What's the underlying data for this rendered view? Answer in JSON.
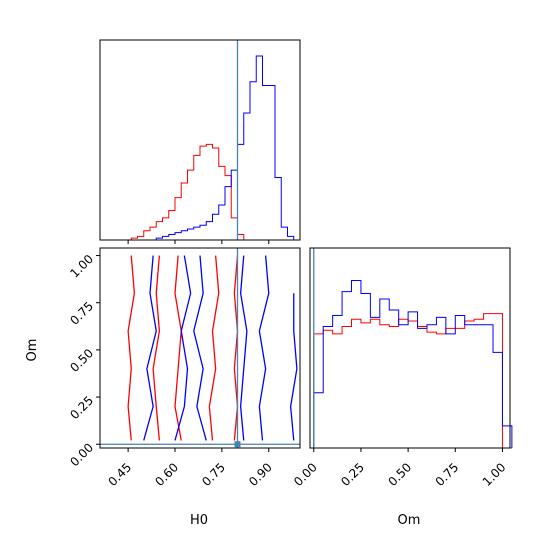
{
  "chart_data": {
    "type": "corner",
    "parameters": [
      "H0",
      "Om"
    ],
    "truth": {
      "H0": 0.8,
      "Om": 0.0
    },
    "colors": {
      "series_a": "#ff0000",
      "series_b": "#0000ff",
      "truth": "#4682b4"
    },
    "panels": [
      {
        "id": "hist_H0",
        "type": "histogram",
        "parameter": "H0",
        "xlim": [
          0.36,
          1.0
        ],
        "x_ticks": [
          0.45,
          0.6,
          0.75,
          0.9
        ],
        "y_ticks_shown": false,
        "ymax": 1.0,
        "bin_edges": [
          0.36,
          0.38,
          0.4,
          0.42,
          0.44,
          0.46,
          0.48,
          0.5,
          0.52,
          0.54,
          0.56,
          0.58,
          0.6,
          0.62,
          0.64,
          0.66,
          0.68,
          0.7,
          0.72,
          0.74,
          0.76,
          0.78,
          0.8,
          0.82,
          0.84,
          0.86,
          0.88,
          0.9,
          0.92,
          0.94,
          0.96,
          0.98,
          1.0
        ],
        "series": [
          {
            "color_key": "series_a",
            "values": [
              0.0,
              0.0,
              0.0,
              0.0,
              0.0,
              0.01,
              0.02,
              0.05,
              0.07,
              0.1,
              0.12,
              0.16,
              0.23,
              0.31,
              0.38,
              0.46,
              0.51,
              0.52,
              0.5,
              0.4,
              0.35,
              0.12,
              0.03,
              0.0,
              0.0,
              0.0,
              0.0,
              0.0,
              0.0,
              0.0,
              0.0,
              0.0
            ]
          },
          {
            "color_key": "series_b",
            "values": [
              0.0,
              0.0,
              0.0,
              0.0,
              0.0,
              0.0,
              0.0,
              0.0,
              0.0,
              0.01,
              0.02,
              0.03,
              0.04,
              0.05,
              0.06,
              0.07,
              0.08,
              0.1,
              0.14,
              0.19,
              0.29,
              0.38,
              0.52,
              0.69,
              0.86,
              1.0,
              0.84,
              0.84,
              0.34,
              0.07,
              0.02,
              0.0
            ]
          }
        ]
      },
      {
        "id": "hist_Om",
        "type": "histogram",
        "parameter": "Om",
        "xlim": [
          -0.02,
          1.04
        ],
        "x_ticks": [
          0.0,
          0.25,
          0.5,
          0.75,
          1.0
        ],
        "y_ticks_shown": false,
        "ymax": 1.0,
        "bin_edges": [
          0.0,
          0.05,
          0.1,
          0.15,
          0.2,
          0.25,
          0.3,
          0.35,
          0.4,
          0.45,
          0.5,
          0.55,
          0.6,
          0.65,
          0.7,
          0.75,
          0.8,
          0.85,
          0.9,
          0.95,
          1.0,
          1.05
        ],
        "series": [
          {
            "color_key": "series_a",
            "values": [
              0.62,
              0.64,
              0.62,
              0.66,
              0.7,
              0.68,
              0.7,
              0.67,
              0.66,
              0.7,
              0.69,
              0.66,
              0.63,
              0.62,
              0.65,
              0.65,
              0.69,
              0.7,
              0.73,
              0.73,
              0.0
            ]
          },
          {
            "color_key": "series_b",
            "values": [
              0.3,
              0.66,
              0.72,
              0.85,
              0.91,
              0.84,
              0.71,
              0.81,
              0.75,
              0.67,
              0.74,
              0.65,
              0.67,
              0.71,
              0.62,
              0.72,
              0.67,
              0.67,
              0.67,
              0.52,
              0.12
            ]
          }
        ]
      },
      {
        "id": "contour_H0_Om",
        "type": "contour",
        "x_parameter": "H0",
        "y_parameter": "Om",
        "xlim": [
          0.36,
          1.0
        ],
        "ylim": [
          -0.02,
          1.04
        ],
        "x_ticks": [
          0.45,
          0.6,
          0.75,
          0.9
        ],
        "y_ticks": [
          0.0,
          0.25,
          0.5,
          0.75,
          1.0
        ],
        "series": [
          {
            "color_key": "series_a",
            "levels": [
              [
                [
                  0.46,
                  0.02
                ],
                [
                  0.45,
                  0.2
                ],
                [
                  0.46,
                  0.4
                ],
                [
                  0.45,
                  0.6
                ],
                [
                  0.47,
                  0.8
                ],
                [
                  0.46,
                  1.0
                ]
              ],
              [
                [
                  0.55,
                  0.02
                ],
                [
                  0.54,
                  0.2
                ],
                [
                  0.53,
                  0.4
                ],
                [
                  0.55,
                  0.6
                ],
                [
                  0.54,
                  0.8
                ],
                [
                  0.55,
                  1.0
                ]
              ],
              [
                [
                  0.62,
                  0.02
                ],
                [
                  0.6,
                  0.2
                ],
                [
                  0.61,
                  0.4
                ],
                [
                  0.62,
                  0.6
                ],
                [
                  0.6,
                  0.8
                ],
                [
                  0.61,
                  1.0
                ]
              ],
              [
                [
                  0.72,
                  0.02
                ],
                [
                  0.71,
                  0.2
                ],
                [
                  0.73,
                  0.4
                ],
                [
                  0.72,
                  0.6
                ],
                [
                  0.74,
                  0.8
                ],
                [
                  0.73,
                  1.0
                ]
              ],
              [
                [
                  0.79,
                  0.02
                ],
                [
                  0.8,
                  0.2
                ],
                [
                  0.79,
                  0.4
                ],
                [
                  0.8,
                  0.6
                ],
                [
                  0.79,
                  0.8
                ],
                [
                  0.8,
                  1.0
                ]
              ]
            ]
          },
          {
            "color_key": "series_b",
            "levels": [
              [
                [
                  0.5,
                  0.02
                ],
                [
                  0.53,
                  0.2
                ],
                [
                  0.51,
                  0.4
                ],
                [
                  0.54,
                  0.6
                ],
                [
                  0.52,
                  0.8
                ],
                [
                  0.53,
                  1.0
                ]
              ],
              [
                [
                  0.6,
                  0.02
                ],
                [
                  0.63,
                  0.2
                ],
                [
                  0.64,
                  0.4
                ],
                [
                  0.62,
                  0.6
                ],
                [
                  0.65,
                  0.8
                ],
                [
                  0.63,
                  1.0
                ]
              ],
              [
                [
                  0.7,
                  0.02
                ],
                [
                  0.67,
                  0.2
                ],
                [
                  0.69,
                  0.4
                ],
                [
                  0.66,
                  0.6
                ],
                [
                  0.69,
                  0.8
                ],
                [
                  0.68,
                  1.0
                ]
              ],
              [
                [
                  0.82,
                  0.02
                ],
                [
                  0.81,
                  0.2
                ],
                [
                  0.82,
                  0.4
                ],
                [
                  0.83,
                  0.6
                ],
                [
                  0.81,
                  0.8
                ],
                [
                  0.82,
                  1.0
                ]
              ],
              [
                [
                  0.88,
                  0.02
                ],
                [
                  0.87,
                  0.2
                ],
                [
                  0.89,
                  0.4
                ],
                [
                  0.87,
                  0.6
                ],
                [
                  0.9,
                  0.8
                ],
                [
                  0.89,
                  1.0
                ]
              ],
              [
                [
                  0.98,
                  0.02
                ],
                [
                  0.97,
                  0.2
                ],
                [
                  0.99,
                  0.4
                ],
                [
                  0.98,
                  0.6
                ],
                [
                  0.98,
                  0.8
                ]
              ]
            ]
          }
        ]
      }
    ],
    "xlabels": {
      "hist_H0": "",
      "contour_H0_Om": "H0",
      "hist_Om": "Om"
    },
    "ylabels": {
      "contour_H0_Om": "Om"
    },
    "tick_text": {
      "H0": [
        "0.45",
        "0.60",
        "0.75",
        "0.90"
      ],
      "Om": [
        "0.00",
        "0.25",
        "0.50",
        "0.75",
        "1.00"
      ]
    }
  }
}
